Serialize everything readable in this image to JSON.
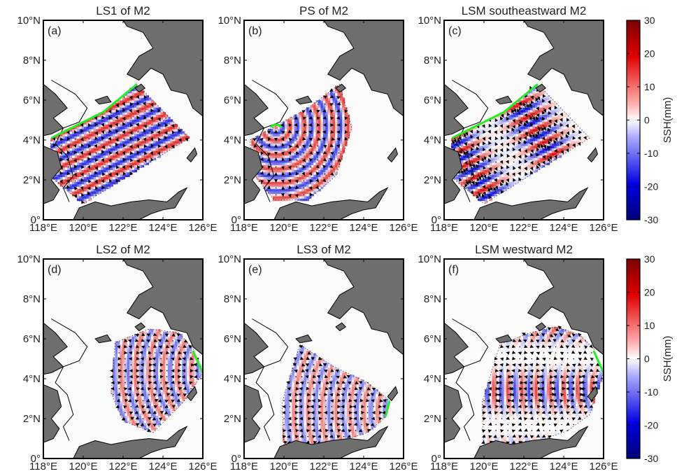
{
  "chart_data": [
    {
      "type": "heatmap",
      "panel_label": "(a)",
      "title": "LS1 of M2",
      "x_ticks": [
        "118°E",
        "120°E",
        "122°E",
        "124°E",
        "126°E"
      ],
      "y_ticks": [
        "10°N",
        "8°N",
        "6°N",
        "4°N",
        "2°N",
        "0°"
      ],
      "xlim": [
        118,
        126
      ],
      "ylim": [
        0,
        10
      ],
      "source_line": [
        [
          118.4,
          4.1
        ],
        [
          121.0,
          5.4
        ],
        [
          122.7,
          6.8
        ]
      ],
      "wave_pattern": "plane waves propagating southeastward"
    },
    {
      "type": "heatmap",
      "panel_label": "(b)",
      "title": "PS of M2",
      "x_ticks": [
        "118°E",
        "120°E",
        "122°E",
        "124°E",
        "126°E"
      ],
      "y_ticks": [
        "10°N",
        "8°N",
        "6°N",
        "4°N",
        "2°N",
        "0°"
      ],
      "xlim": [
        118,
        126
      ],
      "ylim": [
        0,
        10
      ],
      "source_point": [
        119.6,
        4.7
      ],
      "wave_pattern": "circular waves radiating from point source"
    },
    {
      "type": "heatmap",
      "panel_label": "(c)",
      "title": "LSM southeastward M2",
      "x_ticks": [
        "118°E",
        "120°E",
        "122°E",
        "124°E",
        "126°E"
      ],
      "y_ticks": [
        "10°N",
        "8°N",
        "6°N",
        "4°N",
        "2°N",
        "0°"
      ],
      "xlim": [
        118,
        126
      ],
      "ylim": [
        0,
        10
      ],
      "source_line": [
        [
          118.4,
          4.1
        ],
        [
          121.0,
          5.4
        ],
        [
          122.7,
          6.8
        ]
      ],
      "wave_pattern": "modulated southeastward waves",
      "colorbar": {
        "label": "SSH(mm)",
        "ticks": [
          30,
          20,
          10,
          0,
          -10,
          -20,
          -30
        ],
        "range": [
          -30,
          30
        ]
      }
    },
    {
      "type": "heatmap",
      "panel_label": "(d)",
      "title": "LS2 of M2",
      "x_ticks": [
        "118°E",
        "120°E",
        "122°E",
        "124°E",
        "126°E"
      ],
      "y_ticks": [
        "10°N",
        "8°N",
        "6°N",
        "4°N",
        "2°N",
        "0°"
      ],
      "xlim": [
        118,
        126
      ],
      "ylim": [
        0,
        10
      ],
      "source_line": [
        [
          125.5,
          5.4
        ],
        [
          126.0,
          4.3
        ]
      ],
      "wave_pattern": "waves propagating westward"
    },
    {
      "type": "heatmap",
      "panel_label": "(e)",
      "title": "LS3 of M2",
      "x_ticks": [
        "118°E",
        "120°E",
        "122°E",
        "124°E",
        "126°E"
      ],
      "y_ticks": [
        "10°N",
        "8°N",
        "6°N",
        "4°N",
        "2°N",
        "0°"
      ],
      "xlim": [
        118,
        126
      ],
      "ylim": [
        0,
        10
      ],
      "source_line": [
        [
          125.3,
          2.9
        ],
        [
          125.1,
          2.1
        ]
      ],
      "wave_pattern": "waves propagating westward"
    },
    {
      "type": "heatmap",
      "panel_label": "(f)",
      "title": "LSM westward M2",
      "x_ticks": [
        "118°E",
        "120°E",
        "122°E",
        "124°E",
        "126°E"
      ],
      "y_ticks": [
        "10°N",
        "8°N",
        "6°N",
        "4°N",
        "2°N",
        "0°"
      ],
      "xlim": [
        118,
        126
      ],
      "ylim": [
        0,
        10
      ],
      "source_line": [
        [
          125.5,
          5.4
        ],
        [
          126.0,
          4.3
        ]
      ],
      "wave_pattern": "modulated westward waves",
      "colorbar": {
        "label": "SSH(mm)",
        "ticks": [
          30,
          20,
          10,
          0,
          -10,
          -20,
          -30
        ],
        "range": [
          -30,
          30
        ]
      }
    }
  ],
  "colors": {
    "positive": "#d01010",
    "negative": "#1010d0",
    "land": "#6e6e6e",
    "source_line": "#22ee22",
    "arrows": "#000000"
  }
}
